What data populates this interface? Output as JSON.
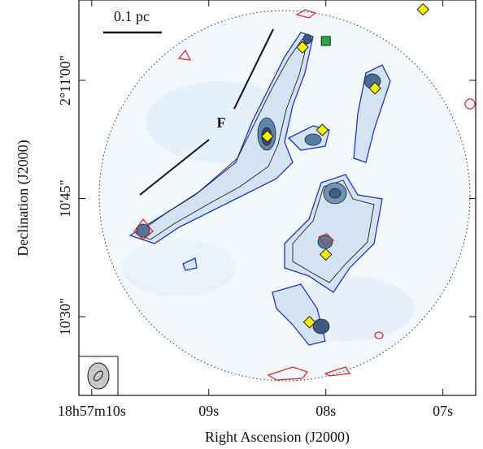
{
  "chart_data": {
    "type": "scatter",
    "x_label": "Right Ascension (J2000)",
    "y_label": "Declination (J2000)",
    "scale_bar_label": "0.1 pc",
    "annotation": "F",
    "xlim": [
      10.11,
      6.72
    ],
    "ylim": [
      620,
      670.2
    ],
    "xticks": [
      {
        "value": 10,
        "label": "18h57m10s"
      },
      {
        "value": 9,
        "label": "09s"
      },
      {
        "value": 8,
        "label": "08s"
      },
      {
        "value": 7,
        "label": "07s"
      }
    ],
    "yticks": [
      {
        "value": 660,
        "label": "2°11'00\""
      },
      {
        "value": 645,
        "label": "10'45\""
      },
      {
        "value": 630,
        "label": "10'30\""
      }
    ],
    "series": [
      {
        "color": "#ffee00",
        "shape": "diamond",
        "x": [
          8.2,
          7.17,
          7.58,
          8.03,
          8.5,
          8.0,
          8.14
        ],
        "y": [
          664.2,
          669.0,
          659.0,
          653.7,
          652.9,
          637.9,
          629.3
        ]
      },
      {
        "color": "#22aa44",
        "shape": "square",
        "x": [
          8.0
        ],
        "y": [
          665.0
        ]
      }
    ]
  }
}
